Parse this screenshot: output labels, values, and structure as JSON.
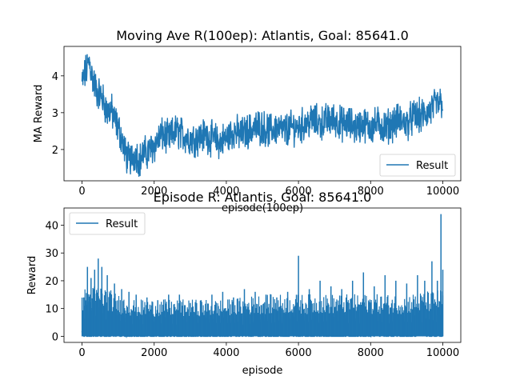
{
  "chart_data": [
    {
      "type": "line",
      "title": "Moving Ave R(100ep): Atlantis, Goal: 85641.0",
      "xlabel": "episode(100ep)",
      "ylabel": "MA Reward",
      "xlim": [
        -500,
        10500
      ],
      "ylim": [
        1.15,
        4.8
      ],
      "xticks": [
        0,
        2000,
        4000,
        6000,
        8000,
        10000
      ],
      "yticks": [
        2,
        3,
        4
      ],
      "legend": "lower-right",
      "grid": false,
      "color": "#1f77b4",
      "series": [
        {
          "name": "Result",
          "x": [
            0,
            100,
            200,
            300,
            400,
            500,
            600,
            700,
            800,
            900,
            1000,
            1100,
            1200,
            1300,
            1400,
            1500,
            1600,
            1700,
            1800,
            1900,
            2000,
            2200,
            2400,
            2600,
            2800,
            3000,
            3200,
            3400,
            3600,
            3800,
            4000,
            4200,
            4400,
            4600,
            4800,
            5000,
            5200,
            5400,
            5600,
            5800,
            6000,
            6200,
            6400,
            6600,
            6800,
            7000,
            7200,
            7400,
            7600,
            7800,
            8000,
            8200,
            8400,
            8600,
            8800,
            9000,
            9200,
            9400,
            9600,
            9800,
            10000
          ],
          "y": [
            3.8,
            4.1,
            4.4,
            3.9,
            3.6,
            3.5,
            3.3,
            3.0,
            3.1,
            2.8,
            2.6,
            2.3,
            1.9,
            1.7,
            1.8,
            1.9,
            1.7,
            1.9,
            1.9,
            2.0,
            2.1,
            2.4,
            2.3,
            2.5,
            2.4,
            2.3,
            2.3,
            2.4,
            2.3,
            2.2,
            2.3,
            2.5,
            2.4,
            2.5,
            2.6,
            2.6,
            2.5,
            2.6,
            2.5,
            2.6,
            2.6,
            2.7,
            2.8,
            2.7,
            2.8,
            2.8,
            2.7,
            2.7,
            2.6,
            2.7,
            2.6,
            2.7,
            2.6,
            2.7,
            2.8,
            2.7,
            2.9,
            2.9,
            3.0,
            3.2,
            3.3
          ]
        }
      ]
    },
    {
      "type": "line",
      "title": "Episode R: Atlantis, Goal: 85641.0",
      "xlabel": "episode",
      "ylabel": "Reward",
      "xlim": [
        -500,
        10500
      ],
      "ylim": [
        -2.2,
        46.2
      ],
      "xticks": [
        0,
        2000,
        4000,
        6000,
        8000,
        10000
      ],
      "yticks": [
        0,
        10,
        20,
        30,
        40
      ],
      "legend": "top-left",
      "grid": false,
      "color": "#1f77b4",
      "series": [
        {
          "name": "Result",
          "peaks_x": [
            50,
            150,
            250,
            350,
            450,
            550,
            700,
            900,
            1100,
            1300,
            1500,
            1800,
            2100,
            2400,
            2700,
            3000,
            3300,
            3600,
            3900,
            4200,
            4500,
            4800,
            5100,
            5400,
            5700,
            6000,
            6300,
            6600,
            6900,
            7200,
            7500,
            7800,
            8100,
            8400,
            8700,
            9000,
            9300,
            9500,
            9700,
            9850,
            9950,
            10000
          ],
          "peaks_y": [
            14,
            25,
            21,
            24,
            28,
            25,
            22,
            19,
            17,
            16,
            15,
            14,
            13,
            15,
            15,
            12,
            13,
            15,
            16,
            14,
            17,
            16,
            15,
            14,
            16,
            29,
            17,
            20,
            18,
            17,
            20,
            23,
            18,
            22,
            20,
            19,
            22,
            20,
            27,
            20,
            44,
            24
          ],
          "band_x": [
            0,
            500,
            1000,
            1500,
            2000,
            3000,
            4000,
            5000,
            6000,
            7000,
            8000,
            9000,
            10000
          ],
          "band_y": [
            9,
            10,
            8,
            7,
            7,
            7,
            7,
            8,
            8,
            8,
            8,
            8,
            9
          ]
        }
      ]
    }
  ]
}
